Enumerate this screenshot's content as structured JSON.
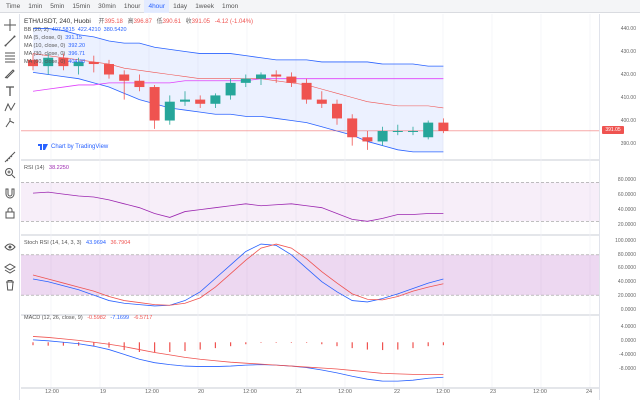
{
  "timeframes": [
    {
      "label": "Time",
      "active": false
    },
    {
      "label": "1min",
      "active": false
    },
    {
      "label": "5min",
      "active": false
    },
    {
      "label": "15min",
      "active": false
    },
    {
      "label": "30min",
      "active": false
    },
    {
      "label": "1hour",
      "active": false
    },
    {
      "label": "4hour",
      "active": true
    },
    {
      "label": "1day",
      "active": false
    },
    {
      "label": "1week",
      "active": false
    },
    {
      "label": "1mon",
      "active": false
    }
  ],
  "header": {
    "symbol": "ETH/USDT, 240, Huobi",
    "open_label": "开",
    "open": "395.18",
    "high_label": "高",
    "high": "396.87",
    "low_label": "低",
    "low": "390.61",
    "close_label": "收",
    "close": "391.05",
    "change": "-4.12 (-1.04%)"
  },
  "indicators": [
    {
      "label": "BB (20, 2)",
      "values": [
        "407.5815",
        "422.4210",
        "380.5420"
      ]
    },
    {
      "label": "MA (5, close, 0)",
      "values": [
        "391.15"
      ]
    },
    {
      "label": "MA (10, close, 0)",
      "values": [
        "392.20"
      ]
    },
    {
      "label": "MA (30, close, 0)",
      "values": [
        "396.71"
      ]
    },
    {
      "label": "MA (60, close, 0)",
      "values": [
        "404.48"
      ]
    }
  ],
  "rsi": {
    "label": "RSI (14)",
    "value": "38.2250"
  },
  "stoch": {
    "label": "Stoch RSI (14, 14, 3, 3)",
    "k": "43.9694",
    "d": "36.7904"
  },
  "macd": {
    "label": "MACD (12, 26, close, 9)",
    "hist": "-0.5982",
    "macd": "-7.1699",
    "signal": "-6.5717"
  },
  "credit": "Chart by TradingView",
  "price_axis": [
    "440.00",
    "430.00",
    "420.00",
    "410.00",
    "400.00",
    "390.00"
  ],
  "last_price": "391.05",
  "rsi_axis": [
    "80.0000",
    "60.0000",
    "40.0000",
    "20.0000"
  ],
  "stoch_axis": [
    "100.0000",
    "80.0000",
    "60.0000",
    "40.0000",
    "20.0000",
    "0.0000"
  ],
  "macd_axis": [
    "4.0000",
    "0.0000",
    "-4.0000",
    "-8.0000"
  ],
  "time_axis": [
    "12:00",
    "19",
    "12:00",
    "20",
    "12:00",
    "21",
    "12:00",
    "22",
    "12:00",
    "23",
    "12:00",
    "24"
  ],
  "colors": {
    "up": "#26a69a",
    "down": "#ef5350",
    "band": "#2962ff",
    "rsi": "#9c27b0",
    "stoch_k": "#2962ff",
    "stoch_d": "#ef5350"
  },
  "tool_icons": [
    "crosshair-icon",
    "trendline-icon",
    "fib-icon",
    "brush-icon",
    "text-icon",
    "pattern-icon",
    "prediction-icon",
    "measure-icon",
    "zoom-icon",
    "magnet-icon",
    "lock-icon",
    "eye-icon",
    "layers-icon",
    "trash-icon"
  ],
  "chart_data": [
    {
      "type": "candlestick",
      "title": "ETH/USDT, 240, Huobi",
      "ylim": [
        380,
        445
      ],
      "candles": [
        {
          "o": 425,
          "h": 428,
          "l": 420,
          "c": 422
        },
        {
          "o": 422,
          "h": 428,
          "l": 418,
          "c": 426
        },
        {
          "o": 426,
          "h": 428,
          "l": 420,
          "c": 422
        },
        {
          "o": 422,
          "h": 426,
          "l": 418,
          "c": 424
        },
        {
          "o": 424,
          "h": 427,
          "l": 419,
          "c": 423
        },
        {
          "o": 423,
          "h": 425,
          "l": 416,
          "c": 418
        },
        {
          "o": 418,
          "h": 420,
          "l": 406,
          "c": 415
        },
        {
          "o": 415,
          "h": 418,
          "l": 410,
          "c": 412
        },
        {
          "o": 412,
          "h": 413,
          "l": 392,
          "c": 396
        },
        {
          "o": 396,
          "h": 408,
          "l": 394,
          "c": 405
        },
        {
          "o": 405,
          "h": 410,
          "l": 403,
          "c": 406
        },
        {
          "o": 406,
          "h": 408,
          "l": 402,
          "c": 404
        },
        {
          "o": 404,
          "h": 409,
          "l": 402,
          "c": 408
        },
        {
          "o": 408,
          "h": 416,
          "l": 406,
          "c": 414
        },
        {
          "o": 414,
          "h": 418,
          "l": 412,
          "c": 416
        },
        {
          "o": 416,
          "h": 419,
          "l": 413,
          "c": 418
        },
        {
          "o": 418,
          "h": 420,
          "l": 414,
          "c": 417
        },
        {
          "o": 417,
          "h": 419,
          "l": 412,
          "c": 414
        },
        {
          "o": 414,
          "h": 416,
          "l": 404,
          "c": 406
        },
        {
          "o": 406,
          "h": 410,
          "l": 402,
          "c": 404
        },
        {
          "o": 404,
          "h": 406,
          "l": 394,
          "c": 397
        },
        {
          "o": 397,
          "h": 399,
          "l": 384,
          "c": 388
        },
        {
          "o": 388,
          "h": 391,
          "l": 382,
          "c": 386
        },
        {
          "o": 386,
          "h": 393,
          "l": 384,
          "c": 391
        },
        {
          "o": 391,
          "h": 394,
          "l": 389,
          "c": 391
        },
        {
          "o": 391,
          "h": 393,
          "l": 389,
          "c": 391
        },
        {
          "o": 388,
          "h": 396,
          "l": 387,
          "c": 395
        },
        {
          "o": 395,
          "h": 397,
          "l": 390,
          "c": 391
        }
      ],
      "bb_upper": [
        440,
        440,
        439,
        437,
        436,
        434,
        433,
        433,
        431,
        430,
        429,
        428,
        428,
        428,
        427,
        426,
        425,
        425,
        425,
        424,
        424,
        424,
        424,
        423,
        423,
        423,
        422,
        422
      ],
      "bb_lower": [
        419,
        418,
        417,
        416,
        414,
        412,
        409,
        406,
        404,
        402,
        401,
        400,
        399,
        399,
        398,
        398,
        397,
        396,
        395,
        393,
        391,
        389,
        386,
        384,
        382,
        381,
        381,
        381
      ],
      "ma_long": [
        410,
        411,
        412,
        413,
        413,
        414,
        414,
        414,
        414,
        414,
        415,
        415,
        415,
        415,
        415,
        416,
        416,
        416,
        416,
        416,
        416,
        416,
        416,
        416,
        416,
        416,
        416,
        416
      ],
      "ma_mid": [
        428,
        427,
        426,
        425,
        424,
        423,
        421,
        420,
        419,
        418,
        417,
        416,
        416,
        416,
        416,
        416,
        415,
        414,
        413,
        411,
        409,
        407,
        405,
        404,
        403,
        403,
        403,
        402
      ]
    },
    {
      "type": "line",
      "title": "RSI (14)",
      "ylim": [
        20,
        90
      ],
      "values": [
        59,
        60,
        58,
        56,
        55,
        52,
        48,
        44,
        38,
        34,
        40,
        42,
        44,
        46,
        48,
        46,
        47,
        48,
        46,
        44,
        38,
        32,
        30,
        33,
        37,
        37,
        38,
        38
      ]
    },
    {
      "type": "line",
      "title": "Stoch RSI (14, 14, 3, 3)",
      "ylim": [
        -5,
        105
      ],
      "series": [
        {
          "values": [
            44,
            40,
            34,
            28,
            20,
            12,
            8,
            6,
            4,
            5,
            12,
            25,
            45,
            65,
            85,
            96,
            94,
            80,
            60,
            40,
            25,
            12,
            10,
            15,
            22,
            30,
            38,
            44
          ]
        },
        {
          "values": [
            50,
            44,
            38,
            32,
            26,
            18,
            12,
            9,
            6,
            5,
            8,
            16,
            32,
            52,
            72,
            90,
            96,
            90,
            74,
            55,
            38,
            22,
            14,
            13,
            18,
            26,
            32,
            37
          ]
        }
      ]
    },
    {
      "type": "line",
      "title": "MACD (12, 26, close, 9)",
      "ylim": [
        -9,
        5
      ],
      "series": [
        {
          "values": [
            0.5,
            0.3,
            0.0,
            -0.3,
            -0.8,
            -1.5,
            -2.5,
            -3.5,
            -4.2,
            -4.6,
            -4.9,
            -5.0,
            -5.0,
            -4.9,
            -4.7,
            -4.6,
            -4.7,
            -4.9,
            -5.2,
            -5.7,
            -6.3,
            -7.0,
            -7.6,
            -8.0,
            -8.0,
            -7.8,
            -7.4,
            -7.2
          ]
        },
        {
          "values": [
            1.2,
            1.0,
            0.7,
            0.4,
            0.0,
            -0.4,
            -0.9,
            -1.5,
            -2.1,
            -2.6,
            -3.1,
            -3.5,
            -3.8,
            -4.1,
            -4.3,
            -4.5,
            -4.7,
            -4.9,
            -5.1,
            -5.3,
            -5.5,
            -5.8,
            -6.1,
            -6.4,
            -6.5,
            -6.6,
            -6.6,
            -6.6
          ]
        }
      ],
      "histogram": [
        -0.6,
        -0.7,
        -0.7,
        -0.7,
        -0.8,
        -1.1,
        -1.6,
        -2.0,
        -2.1,
        -2.0,
        -1.8,
        -1.5,
        -1.2,
        -0.8,
        -0.4,
        -0.1,
        0.0,
        0.0,
        -0.1,
        -0.4,
        -0.8,
        -1.2,
        -1.5,
        -1.6,
        -1.5,
        -1.2,
        -0.8,
        -0.6
      ]
    }
  ]
}
